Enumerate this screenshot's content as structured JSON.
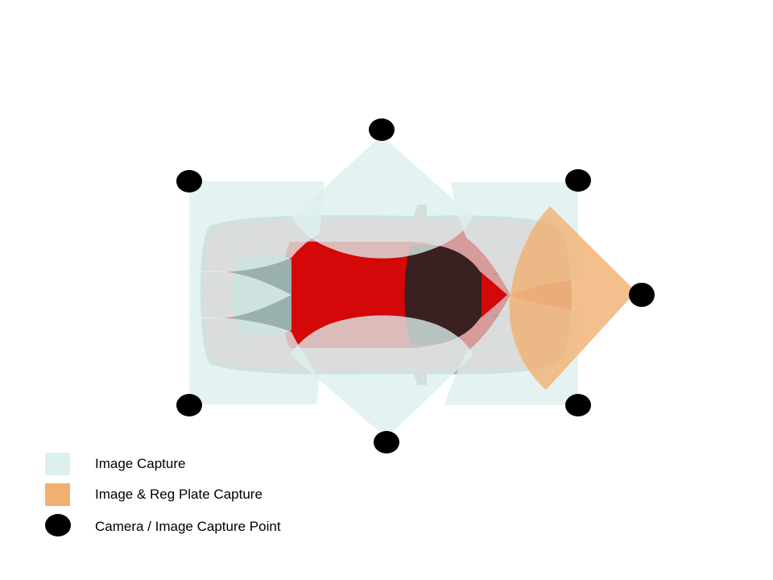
{
  "colors": {
    "image_capture": "#dcf0ee",
    "reg_plate_capture": "#f0b070",
    "camera_point": "#000000",
    "car_body": "#cf8a8a",
    "car_outline": "#8aa3a0",
    "car_cabin": "#d40000",
    "car_glass": "#3a2020",
    "car_windshield_tint": "#9ab0ae"
  },
  "legend": {
    "items": [
      {
        "id": "image_capture",
        "label": "Image Capture",
        "swatch": "square"
      },
      {
        "id": "reg_plate",
        "label": "Image & Reg Plate Capture",
        "swatch": "square"
      },
      {
        "id": "camera_point",
        "label": "Camera / Image Capture Point",
        "swatch": "circle"
      }
    ]
  },
  "icons": {
    "camera": "camera-point-icon",
    "car": "car-top-view-icon"
  }
}
